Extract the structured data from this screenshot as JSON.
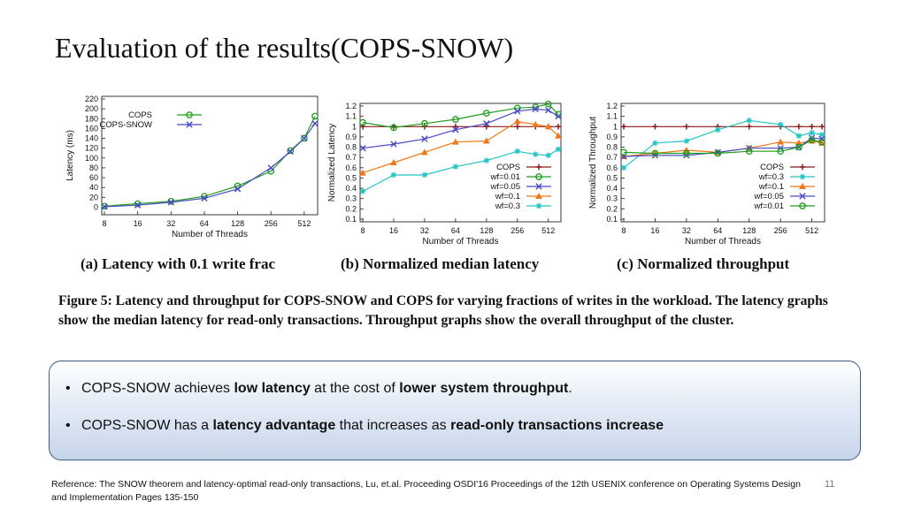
{
  "slide": {
    "title": "Evaluation of the results(COPS-SNOW)",
    "page_number": "11"
  },
  "figure": {
    "subcaptions": {
      "a": "(a) Latency with 0.1 write frac",
      "b": "(b) Normalized median latency",
      "c": "(c) Normalized throughput"
    },
    "caption": "Figure 5: Latency and throughput for COPS-SNOW and COPS for varying fractions of writes in the workload. The latency graphs show the median latency for read-only transactions. Throughput graphs show the overall throughput of the cluster."
  },
  "takeaways": {
    "bullet_glyph": "•",
    "items": [
      {
        "parts": [
          {
            "text": "COPS-SNOW achieves ",
            "bold": false
          },
          {
            "text": "low latency",
            "bold": true
          },
          {
            "text": " at the cost of ",
            "bold": false
          },
          {
            "text": "lower system throughput",
            "bold": true
          },
          {
            "text": ".",
            "bold": false
          }
        ]
      },
      {
        "parts": [
          {
            "text": "COPS-SNOW has a ",
            "bold": false
          },
          {
            "text": "latency advantage",
            "bold": true
          },
          {
            "text": " that increases as ",
            "bold": false
          },
          {
            "text": "read-only transactions increase",
            "bold": true
          }
        ]
      }
    ]
  },
  "reference": "Reference: The SNOW theorem and latency-optimal read-only transactions, Lu, et.al. Proceeding OSDI'16 Proceedings of the 12th USENIX conference on Operating Systems Design and Implementation Pages 135-150",
  "chart_data": [
    {
      "id": "a",
      "type": "line",
      "xlabel": "Number of Threads",
      "ylabel": "Latency (ms)",
      "x_scale": "log2",
      "x": [
        8,
        16,
        32,
        64,
        128,
        256,
        384,
        512,
        640
      ],
      "xticks": [
        "8",
        "16",
        "32",
        "64",
        "128",
        "256",
        "512"
      ],
      "xtick_values": [
        8,
        16,
        32,
        64,
        128,
        256,
        512
      ],
      "yticks": [
        0,
        20,
        40,
        60,
        80,
        100,
        120,
        140,
        160,
        180,
        200,
        220
      ],
      "ylim": [
        -10,
        220
      ],
      "legend_position": "top-center",
      "series": [
        {
          "name": "COPS",
          "color": "#1e9e1e",
          "marker": "circle",
          "values": [
            2,
            7,
            12,
            22,
            43,
            73,
            115,
            140,
            185
          ]
        },
        {
          "name": "COPS-SNOW",
          "color": "#4a4ac4",
          "marker": "x",
          "values": [
            1,
            4,
            10,
            18,
            37,
            80,
            113,
            140,
            170
          ]
        }
      ]
    },
    {
      "id": "b",
      "type": "line",
      "xlabel": "Number of Threads",
      "ylabel": "Normalized Latency",
      "x_scale": "log2",
      "x": [
        8,
        16,
        32,
        64,
        128,
        256,
        384,
        512,
        640
      ],
      "xticks": [
        "8",
        "16",
        "32",
        "64",
        "128",
        "256",
        "512"
      ],
      "xtick_values": [
        8,
        16,
        32,
        64,
        128,
        256,
        512
      ],
      "yticks": [
        "0.1",
        "0.2",
        "0.3",
        "0.4",
        "0.5",
        "0.6",
        "0.7",
        "0.8",
        "0.9",
        "1",
        "1.1",
        "1.2"
      ],
      "ytick_values": [
        0.1,
        0.2,
        0.3,
        0.4,
        0.5,
        0.6,
        0.7,
        0.8,
        0.9,
        1.0,
        1.1,
        1.2
      ],
      "ylim": [
        0.1,
        1.2
      ],
      "legend_position": "bottom-right",
      "series": [
        {
          "name": "COPS",
          "color": "#8b1a1a",
          "marker": "plus",
          "values": [
            1,
            1,
            1,
            1,
            1,
            1,
            1,
            1,
            1
          ]
        },
        {
          "name": "wf=0.01",
          "color": "#1e9e1e",
          "marker": "circle",
          "values": [
            1.04,
            0.99,
            1.03,
            1.07,
            1.13,
            1.18,
            1.19,
            1.22,
            1.12
          ]
        },
        {
          "name": "wf=0.05",
          "color": "#4a4ac4",
          "marker": "x",
          "values": [
            0.79,
            0.83,
            0.88,
            0.97,
            1.03,
            1.15,
            1.17,
            1.16,
            1.1
          ]
        },
        {
          "name": "wf=0.1",
          "color": "#f07818",
          "marker": "triangle",
          "values": [
            0.55,
            0.65,
            0.75,
            0.85,
            0.86,
            1.05,
            1.02,
            1.0,
            0.91
          ]
        },
        {
          "name": "wf=0.3",
          "color": "#22c3c3",
          "marker": "star",
          "values": [
            0.37,
            0.53,
            0.53,
            0.61,
            0.67,
            0.76,
            0.73,
            0.72,
            0.78
          ]
        }
      ]
    },
    {
      "id": "c",
      "type": "line",
      "xlabel": "Number of Threads",
      "ylabel": "Normalized Throughput",
      "x_scale": "log2",
      "x": [
        8,
        16,
        32,
        64,
        128,
        256,
        384,
        512,
        640
      ],
      "xticks": [
        "8",
        "16",
        "32",
        "64",
        "128",
        "256",
        "512"
      ],
      "xtick_values": [
        8,
        16,
        32,
        64,
        128,
        256,
        512
      ],
      "yticks": [
        "0.1",
        "0.2",
        "0.3",
        "0.4",
        "0.5",
        "0.6",
        "0.7",
        "0.8",
        "0.9",
        "1",
        "1.1",
        "1.2"
      ],
      "ytick_values": [
        0.1,
        0.2,
        0.3,
        0.4,
        0.5,
        0.6,
        0.7,
        0.8,
        0.9,
        1.0,
        1.1,
        1.2
      ],
      "ylim": [
        0.1,
        1.2
      ],
      "legend_position": "bottom-right",
      "series": [
        {
          "name": "COPS",
          "color": "#8b1a1a",
          "marker": "plus",
          "values": [
            1,
            1,
            1,
            1,
            1,
            1,
            1,
            1,
            1
          ]
        },
        {
          "name": "wf=0.3",
          "color": "#22c3c3",
          "marker": "star",
          "values": [
            0.6,
            0.84,
            0.86,
            0.97,
            1.06,
            1.02,
            0.91,
            0.94,
            0.92
          ]
        },
        {
          "name": "wf=0.1",
          "color": "#f07818",
          "marker": "triangle",
          "values": [
            0.71,
            0.74,
            0.77,
            0.75,
            0.79,
            0.85,
            0.84,
            0.86,
            0.84
          ]
        },
        {
          "name": "wf=0.05",
          "color": "#4a4ac4",
          "marker": "x",
          "values": [
            0.71,
            0.72,
            0.72,
            0.75,
            0.79,
            0.79,
            0.8,
            0.89,
            0.88
          ]
        },
        {
          "name": "wf=0.01",
          "color": "#1e9e1e",
          "marker": "circle",
          "values": [
            0.75,
            0.74,
            0.74,
            0.74,
            0.76,
            0.76,
            0.8,
            0.87,
            0.85
          ]
        }
      ]
    }
  ]
}
